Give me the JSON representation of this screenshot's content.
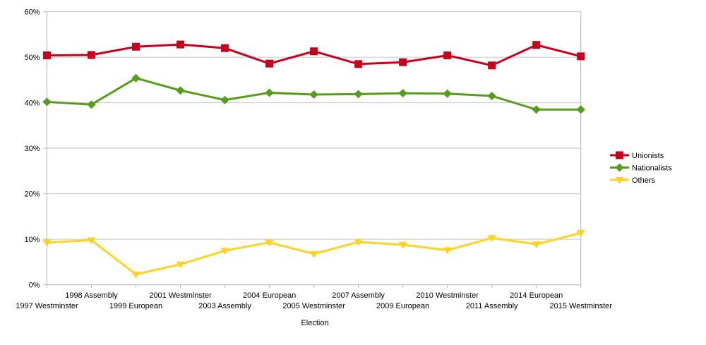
{
  "chart_data": {
    "type": "line",
    "title": "",
    "xlabel": "Election",
    "ylabel": "",
    "ylim": [
      0,
      60
    ],
    "ytick_step": 10,
    "ytick_format": "percent",
    "grid": true,
    "legend_position": "right",
    "categories": [
      "1997 Westminster",
      "1998 Assembly",
      "1999 European",
      "2001 Westminster",
      "2003 Assembly",
      "2004 European",
      "2005 Westminster",
      "2007 Assembly",
      "2009 European",
      "2010 Westminster",
      "2011 Assembly",
      "2014 European",
      "2015 Westminster"
    ],
    "series": [
      {
        "name": "Unionists",
        "color": "#c9001c",
        "marker": "square",
        "values": [
          50.4,
          50.5,
          52.3,
          52.8,
          52.0,
          48.6,
          51.3,
          48.5,
          48.9,
          50.4,
          48.2,
          52.7,
          50.2
        ]
      },
      {
        "name": "Nationalists",
        "color": "#579d1c",
        "marker": "diamond",
        "values": [
          40.2,
          39.6,
          45.4,
          42.7,
          40.6,
          42.2,
          41.8,
          41.9,
          42.1,
          42.0,
          41.5,
          38.5,
          38.5
        ]
      },
      {
        "name": "Others",
        "color": "#ffd320",
        "marker": "triangle-down",
        "values": [
          9.3,
          9.8,
          2.3,
          4.5,
          7.5,
          9.3,
          6.8,
          9.4,
          8.8,
          7.6,
          10.3,
          8.9,
          11.4
        ]
      }
    ],
    "y_tick_labels": [
      "0%",
      "10%",
      "20%",
      "30%",
      "40%",
      "50%",
      "60%"
    ],
    "grid_color": "#c6c6c6",
    "axis_color": "#b3b3b3",
    "text_color": "#000000",
    "background_color": "#ffffff"
  }
}
